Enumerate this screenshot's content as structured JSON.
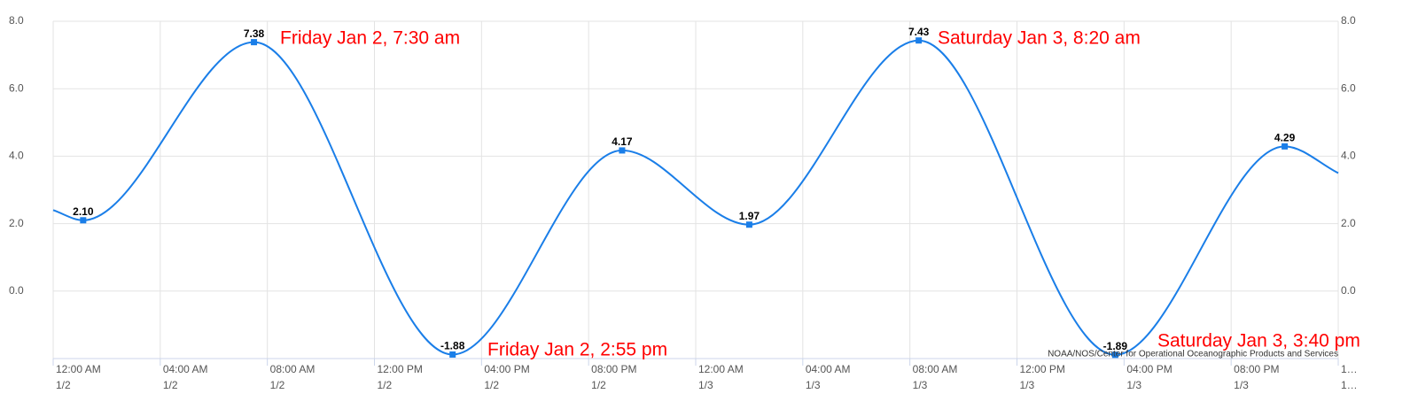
{
  "chart_data": {
    "type": "line",
    "x": [
      0,
      1.12,
      7.5,
      14.92,
      21.25,
      26,
      32.33,
      39.67,
      46,
      48
    ],
    "values": [
      2.4,
      2.1,
      7.38,
      -1.88,
      4.17,
      1.97,
      7.43,
      -1.89,
      4.29,
      3.5
    ],
    "value_labels": [
      null,
      "2.10",
      "7.38",
      "-1.88",
      "4.17",
      "1.97",
      "7.43",
      "-1.89",
      "4.29",
      null
    ],
    "color": "#1a7ee8",
    "xlim": [
      0,
      48
    ],
    "xticks": [
      {
        "value": 0,
        "label": [
          "12:00 AM",
          "1/2"
        ]
      },
      {
        "value": 4,
        "label": [
          "04:00 AM",
          "1/2"
        ]
      },
      {
        "value": 8,
        "label": [
          "08:00 AM",
          "1/2"
        ]
      },
      {
        "value": 12,
        "label": [
          "12:00 PM",
          "1/2"
        ]
      },
      {
        "value": 16,
        "label": [
          "04:00 PM",
          "1/2"
        ]
      },
      {
        "value": 20,
        "label": [
          "08:00 PM",
          "1/2"
        ]
      },
      {
        "value": 24,
        "label": [
          "12:00 AM",
          "1/3"
        ]
      },
      {
        "value": 28,
        "label": [
          "04:00 AM",
          "1/3"
        ]
      },
      {
        "value": 32,
        "label": [
          "08:00 AM",
          "1/3"
        ]
      },
      {
        "value": 36,
        "label": [
          "12:00 PM",
          "1/3"
        ]
      },
      {
        "value": 40,
        "label": [
          "04:00 PM",
          "1/3"
        ]
      },
      {
        "value": 44,
        "label": [
          "08:00 PM",
          "1/3"
        ]
      },
      {
        "value": 48,
        "label": [
          "1…",
          "1…"
        ]
      }
    ],
    "ylim": [
      -2,
      8
    ],
    "yticks": [
      {
        "value": 0,
        "label": "0.0"
      },
      {
        "value": 2,
        "label": "2.0"
      },
      {
        "value": 4,
        "label": "4.0"
      },
      {
        "value": 6,
        "label": "6.0"
      },
      {
        "value": 8,
        "label": "8.0"
      }
    ],
    "y2lim": [
      -2,
      8
    ],
    "y2ticks": [
      {
        "value": 0,
        "label": "0.0"
      },
      {
        "value": 2,
        "label": "2.0"
      },
      {
        "value": 4,
        "label": "4.0"
      },
      {
        "value": 6,
        "label": "6.0"
      },
      {
        "value": 8,
        "label": "8.0"
      }
    ],
    "grid": true,
    "annotations": [
      "Friday Jan 2, 7:30 am",
      "Friday Jan 2, 2:55 pm",
      "Saturday Jan 3, 8:20 am",
      "Saturday Jan 3, 3:40 pm"
    ],
    "credit": "NOAA/NOS/Center for Operational Oceanographic Products and Services"
  }
}
